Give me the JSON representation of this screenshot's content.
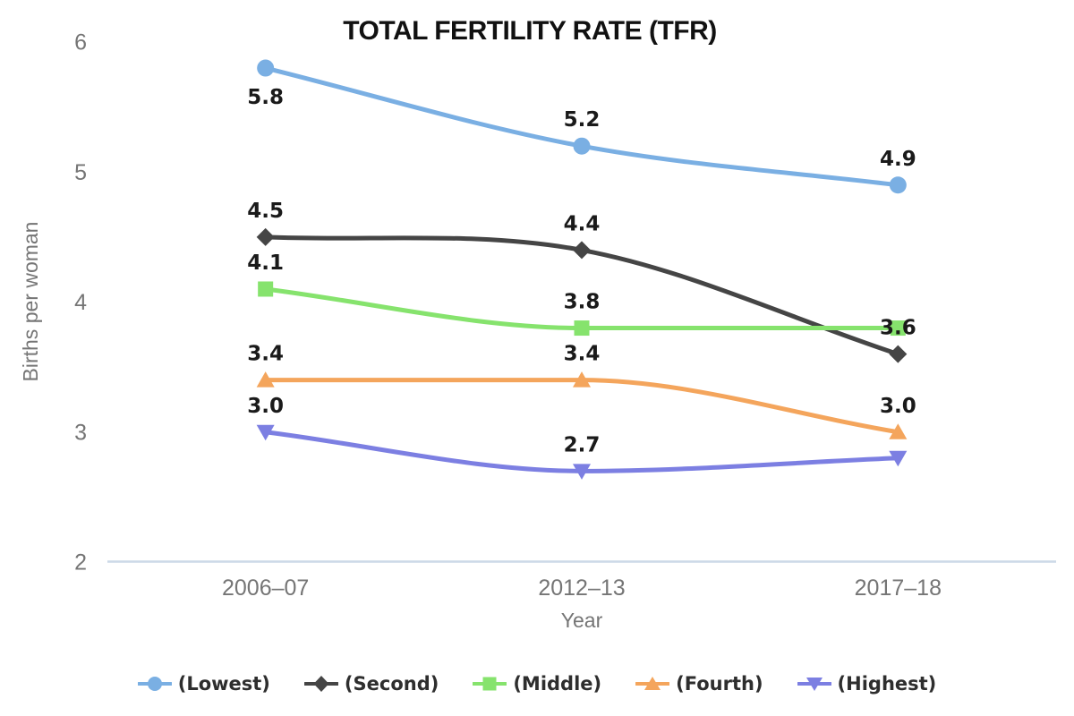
{
  "title": "TOTAL FERTILITY RATE (TFR)",
  "chart_data": {
    "type": "line",
    "title": "TOTAL FERTILITY RATE (TFR)",
    "xlabel": "Year",
    "ylabel": "Births per woman",
    "categories": [
      "2006–07",
      "2012–13",
      "2017–18"
    ],
    "ylim": [
      2,
      6
    ],
    "yticks": [
      2,
      3,
      4,
      5,
      6
    ],
    "grid": false,
    "line_style": "smooth-monotone",
    "legend_position": "bottom",
    "axis_line_color": "#ccd9e7",
    "axis_text_color": "#757575",
    "label_text_color": "#1a1a1a",
    "series": [
      {
        "name": "(Lowest)",
        "color": "#7AAFE3",
        "marker": "circle",
        "values": [
          5.8,
          5.2,
          4.9
        ],
        "labels": [
          {
            "text": "5.8",
            "pos": "below"
          },
          {
            "text": "5.2",
            "pos": "above"
          },
          {
            "text": "4.9",
            "pos": "above"
          }
        ]
      },
      {
        "name": "(Second)",
        "color": "#454545",
        "marker": "diamond",
        "values": [
          4.5,
          4.4,
          3.6
        ],
        "labels": [
          {
            "text": "4.5",
            "pos": "above"
          },
          {
            "text": "4.4",
            "pos": "above"
          },
          {
            "text": "3.6",
            "pos": "above"
          }
        ]
      },
      {
        "name": "(Middle)",
        "color": "#86E36D",
        "marker": "square",
        "values": [
          4.1,
          3.8,
          3.8
        ],
        "labels": [
          {
            "text": "4.1",
            "pos": "above"
          },
          {
            "text": "3.8",
            "pos": "above"
          },
          {
            "text": "",
            "pos": "none"
          }
        ]
      },
      {
        "name": "(Fourth)",
        "color": "#F4A55C",
        "marker": "triangle-up",
        "values": [
          3.4,
          3.4,
          3.0
        ],
        "labels": [
          {
            "text": "3.4",
            "pos": "above"
          },
          {
            "text": "3.4",
            "pos": "above"
          },
          {
            "text": "3.0",
            "pos": "above"
          }
        ]
      },
      {
        "name": "(Highest)",
        "color": "#7C7FE2",
        "marker": "triangle-down",
        "values": [
          3.0,
          2.7,
          2.8
        ],
        "labels": [
          {
            "text": "3.0",
            "pos": "above"
          },
          {
            "text": "2.7",
            "pos": "above"
          },
          {
            "text": "",
            "pos": "none"
          }
        ]
      }
    ]
  }
}
